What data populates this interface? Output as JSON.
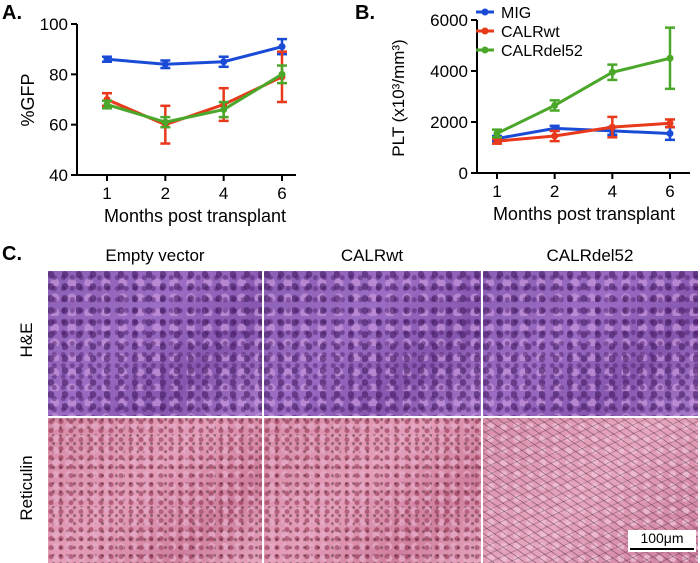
{
  "panels": {
    "a_label": "A.",
    "b_label": "B.",
    "c_label": "C."
  },
  "colors": {
    "mig": "#1a4bd6",
    "calrwt": "#e8391b",
    "calrdel52": "#4aa72a"
  },
  "chart_data": [
    {
      "type": "line",
      "title": "",
      "xlabel": "Months post transplant",
      "ylabel": "%GFP",
      "categories": [
        "1",
        "2",
        "4",
        "6"
      ],
      "ylim": [
        40,
        100
      ],
      "yticks": [
        "40",
        "60",
        "80",
        "100"
      ],
      "series": [
        {
          "name": "MIG",
          "values": [
            86,
            84,
            85,
            91
          ],
          "errors": [
            1,
            1.5,
            2,
            3
          ],
          "color": "#1a4bd6"
        },
        {
          "name": "CALRwt",
          "values": [
            70,
            60,
            68,
            79
          ],
          "errors": [
            2.5,
            7.5,
            6.5,
            10
          ],
          "color": "#e8391b"
        },
        {
          "name": "CALRdel52",
          "values": [
            68,
            61,
            66,
            80
          ],
          "errors": [
            1.5,
            2,
            3,
            3.5
          ],
          "color": "#4aa72a"
        }
      ]
    },
    {
      "type": "line",
      "title": "",
      "xlabel": "Months post transplant",
      "ylabel": "PLT (x10³/mm³)",
      "categories": [
        "1",
        "2",
        "4",
        "6"
      ],
      "ylim": [
        0,
        6000
      ],
      "yticks": [
        "0",
        "2000",
        "4000",
        "6000"
      ],
      "legend": [
        "MIG",
        "CALRwt",
        "CALRdel52"
      ],
      "series": [
        {
          "name": "MIG",
          "values": [
            1350,
            1750,
            1650,
            1550
          ],
          "errors": [
            100,
            100,
            150,
            250
          ],
          "color": "#1a4bd6"
        },
        {
          "name": "CALRwt",
          "values": [
            1250,
            1450,
            1800,
            1950
          ],
          "errors": [
            100,
            200,
            400,
            150
          ],
          "color": "#e8391b"
        },
        {
          "name": "CALRdel52",
          "values": [
            1550,
            2650,
            3950,
            4500
          ],
          "errors": [
            150,
            200,
            300,
            1200
          ],
          "color": "#4aa72a"
        }
      ]
    }
  ],
  "histology": {
    "columns": [
      "Empty vector",
      "CALRwt",
      "CALRdel52"
    ],
    "rows": [
      "H&E",
      "Reticulin"
    ],
    "scalebar": "100μm"
  }
}
